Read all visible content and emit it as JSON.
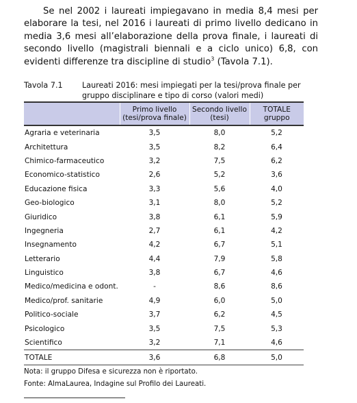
{
  "intro": {
    "text": "Se nel 2002 i laureati impiegavano in media 8,4 mesi per elaborare la tesi, nel 2016 i laureati di primo livello dedicano in media 3,6 mesi all’elaborazione della prova finale, i laureati di secondo livello (magistrali biennali e a ciclo unico) 6,8, con evidenti differenze tra discipline di studio",
    "footnote_mark": "3",
    "tail": " (Tavola 7.1)."
  },
  "table": {
    "number": "Tavola 7.1",
    "caption": "Laureati 2016: mesi impiegati per la tesi/prova finale per gruppo disciplinare e tipo di corso (valori medi)",
    "headers": {
      "label": "",
      "primo_1": "Primo livello",
      "primo_2": "(tesi/prova finale)",
      "secondo_1": "Secondo livello",
      "secondo_2": "(tesi)",
      "totale_1": "TOTALE",
      "totale_2": "gruppo"
    },
    "rows": [
      {
        "group": "Agraria e veterinaria",
        "primo": "3,5",
        "secondo": "8,0",
        "totale": "5,2"
      },
      {
        "group": "Architettura",
        "primo": "3,5",
        "secondo": "8,2",
        "totale": "6,4"
      },
      {
        "group": "Chimico-farmaceutico",
        "primo": "3,2",
        "secondo": "7,5",
        "totale": "6,2"
      },
      {
        "group": "Economico-statistico",
        "primo": "2,6",
        "secondo": "5,2",
        "totale": "3,6"
      },
      {
        "group": "Educazione fisica",
        "primo": "3,3",
        "secondo": "5,6",
        "totale": "4,0"
      },
      {
        "group": "Geo-biologico",
        "primo": "3,1",
        "secondo": "8,0",
        "totale": "5,2"
      },
      {
        "group": "Giuridico",
        "primo": "3,8",
        "secondo": "6,1",
        "totale": "5,9"
      },
      {
        "group": "Ingegneria",
        "primo": "2,7",
        "secondo": "6,1",
        "totale": "4,2"
      },
      {
        "group": "Insegnamento",
        "primo": "4,2",
        "secondo": "6,7",
        "totale": "5,1"
      },
      {
        "group": "Letterario",
        "primo": "4,4",
        "secondo": "7,9",
        "totale": "5,8"
      },
      {
        "group": "Linguistico",
        "primo": "3,8",
        "secondo": "6,7",
        "totale": "4,6"
      },
      {
        "group": "Medico/medicina e odont.",
        "primo": "-",
        "secondo": "8,6",
        "totale": "8,6"
      },
      {
        "group": "Medico/prof. sanitarie",
        "primo": "4,9",
        "secondo": "6,0",
        "totale": "5,0"
      },
      {
        "group": "Politico-sociale",
        "primo": "3,7",
        "secondo": "6,2",
        "totale": "4,5"
      },
      {
        "group": "Psicologico",
        "primo": "3,5",
        "secondo": "7,5",
        "totale": "5,3"
      },
      {
        "group": "Scientifico",
        "primo": "3,2",
        "secondo": "7,1",
        "totale": "4,6"
      }
    ],
    "total_row": {
      "group": "TOTALE",
      "primo": "3,6",
      "secondo": "6,8",
      "totale": "5,0"
    },
    "header_color": "#c9cbe8"
  },
  "notes": {
    "nota": "Nota: il gruppo Difesa e sicurezza non è riportato.",
    "fonte": "Fonte: AlmaLaurea, Indagine sul Profilo dei Laureati."
  }
}
